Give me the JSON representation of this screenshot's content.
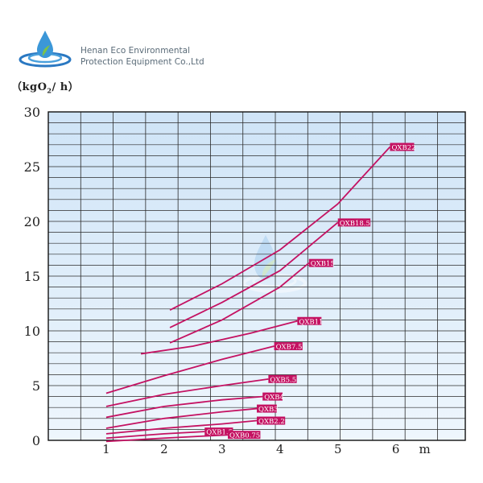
{
  "company": {
    "line1": "Henan Eco Environmental",
    "line2": "Protection Equipment Co.,Ltd"
  },
  "logo_icon": "water-drop-ripple-icon",
  "unit_label": {
    "prefix": "（kgO",
    "sub": "2",
    "suffix": "/ h）"
  },
  "colors": {
    "line": "#c41262",
    "label_bg": "#c41262",
    "label_text": "#ffffff",
    "grid": "#2a2a2a",
    "plot_bg_top": "#cfe4f7",
    "plot_bg_bottom": "#eaf4fc"
  },
  "chart_data": {
    "type": "line",
    "xlabel": "m",
    "ylabel": "（kgO2/ h）",
    "xlim": [
      0,
      7.2
    ],
    "ylim": [
      0,
      30
    ],
    "x_ticks": [
      "1",
      "2",
      "3",
      "4",
      "5",
      "6"
    ],
    "x_tick_values": [
      1,
      2,
      3,
      4,
      5,
      6
    ],
    "y_ticks": [
      "0",
      "5",
      "10",
      "15",
      "20",
      "25",
      "30"
    ],
    "y_tick_values": [
      0,
      5,
      10,
      15,
      20,
      25,
      30
    ],
    "grid": true,
    "series": [
      {
        "name": "QXB22",
        "x": [
          2.1,
          3.0,
          4.0,
          5.0,
          5.9
        ],
        "y": [
          11.9,
          14.3,
          17.4,
          21.6,
          26.8
        ]
      },
      {
        "name": "QXB18.5",
        "x": [
          2.1,
          3.0,
          4.0,
          5.0
        ],
        "y": [
          10.3,
          12.6,
          15.5,
          19.9
        ]
      },
      {
        "name": "QXB15",
        "x": [
          2.1,
          3.0,
          4.0,
          4.5
        ],
        "y": [
          8.9,
          11.0,
          14.0,
          16.2
        ]
      },
      {
        "name": "QXB11",
        "x": [
          1.6,
          2.5,
          3.5,
          4.3
        ],
        "y": [
          7.9,
          8.6,
          9.8,
          10.9
        ]
      },
      {
        "name": "QXB7.5",
        "x": [
          1.0,
          2.0,
          3.0,
          3.9
        ],
        "y": [
          4.3,
          5.9,
          7.4,
          8.6
        ]
      },
      {
        "name": "QXB5.5",
        "x": [
          1.0,
          2.0,
          3.0,
          3.8
        ],
        "y": [
          3.1,
          4.2,
          5.0,
          5.6
        ]
      },
      {
        "name": "QXB4",
        "x": [
          1.0,
          2.0,
          3.0,
          3.7
        ],
        "y": [
          2.1,
          3.1,
          3.7,
          4.0
        ]
      },
      {
        "name": "QXB3",
        "x": [
          1.0,
          2.0,
          3.0,
          3.6
        ],
        "y": [
          1.1,
          2.0,
          2.6,
          2.9
        ]
      },
      {
        "name": "QXB2.2",
        "x": [
          1.0,
          2.0,
          3.0,
          3.6
        ],
        "y": [
          0.6,
          1.1,
          1.5,
          1.8
        ]
      },
      {
        "name": "QXB1.5",
        "x": [
          1.0,
          2.0,
          2.7
        ],
        "y": [
          0.2,
          0.6,
          0.8
        ]
      },
      {
        "name": "QXB0.75",
        "x": [
          1.0,
          2.0,
          3.1
        ],
        "y": [
          -0.1,
          0.2,
          0.5
        ]
      }
    ]
  }
}
